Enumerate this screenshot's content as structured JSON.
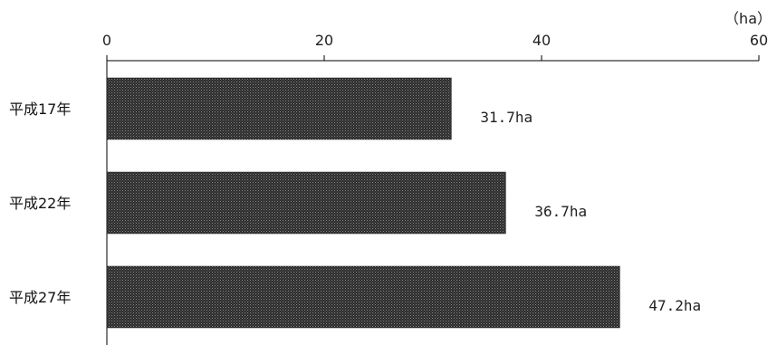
{
  "chart_data": {
    "type": "bar",
    "orientation": "horizontal",
    "unit": "（ha）",
    "categories": [
      "平成17年",
      "平成22年",
      "平成27年"
    ],
    "values": [
      31.7,
      36.7,
      47.2
    ],
    "data_labels": [
      "31.7ha",
      "36.7ha",
      "47.2ha"
    ],
    "xlim": [
      0,
      60
    ],
    "x_ticks": [
      0,
      20,
      40,
      60
    ],
    "x_tick_labels": [
      "0",
      "20",
      "40",
      "60"
    ],
    "axis_position": "top",
    "grid": false,
    "legend": "none",
    "colors": {
      "bar_fill": "#2b2b2b",
      "bar_dot": "#8a8a8a",
      "axis": "#000000"
    }
  }
}
